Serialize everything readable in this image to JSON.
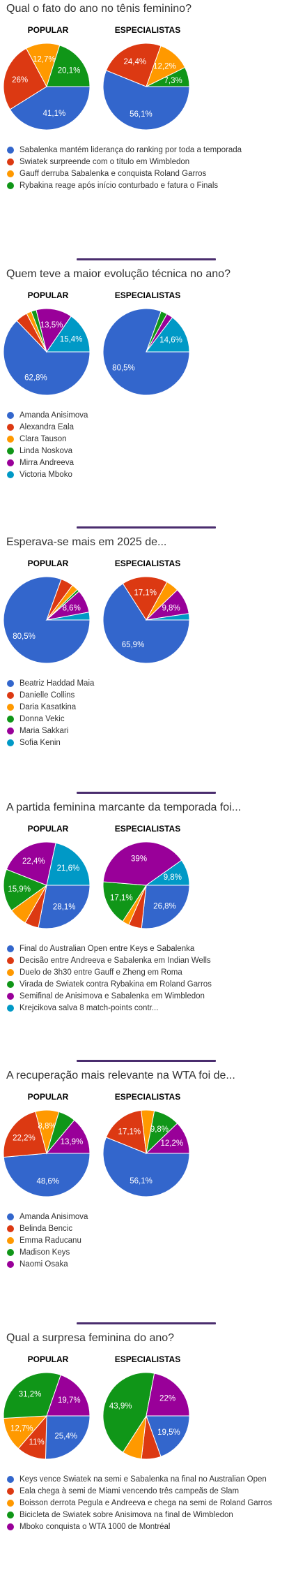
{
  "labels": {
    "popular": "POPULAR",
    "experts": "ESPECIALISTAS"
  },
  "chart_data": [
    {
      "type": "pie",
      "title": "Qual o fato do ano no tênis feminino?",
      "categories": [
        "Sabalenka mantém liderança do ranking por toda a temporada",
        "Swiatek surpreende com o título em Wimbledon",
        "Gauff derruba Sabalenka e conquista Roland Garros",
        "Rybakina reage após início conturbado e fatura o Finals"
      ],
      "colors": [
        "#3366cc",
        "#dc3912",
        "#ff9900",
        "#109618"
      ],
      "series": [
        {
          "name": "POPULAR",
          "values": [
            41.1,
            26,
            12.7,
            20.1
          ],
          "labels": [
            "41,1%",
            "26%",
            "12,7%",
            "20,1%"
          ]
        },
        {
          "name": "ESPECIALISTAS",
          "values": [
            56.1,
            24.4,
            12.2,
            7.3
          ],
          "labels": [
            "56,1%",
            "24,4%",
            "12,2%",
            "7,3%"
          ]
        }
      ]
    },
    {
      "type": "pie",
      "title": "Quem teve a maior evolução técnica no ano?",
      "categories": [
        "Amanda Anisimova",
        "Alexandra Eala",
        "Clara Tauson",
        "Linda Noskova",
        "Mirra Andreeva",
        "Victoria Mboko"
      ],
      "colors": [
        "#3366cc",
        "#dc3912",
        "#ff9900",
        "#109618",
        "#990099",
        "#0099c6"
      ],
      "series": [
        {
          "name": "POPULAR",
          "values": [
            62.8,
            4.5,
            1.9,
            1.9,
            13.5,
            15.4
          ],
          "labels": [
            "62,8%",
            "",
            "",
            "",
            "13,5%",
            "15,4%"
          ]
        },
        {
          "name": "ESPECIALISTAS",
          "values": [
            80.5,
            0,
            0,
            2.4,
            2.4,
            14.6
          ],
          "labels": [
            "80,5%",
            "",
            "",
            "",
            "",
            "14,6%"
          ]
        }
      ]
    },
    {
      "type": "pie",
      "title": "Esperava-se mais em 2025 de...",
      "categories": [
        "Beatriz Haddad Maia",
        "Danielle Collins",
        "Daria Kasatkina",
        "Donna Vekic",
        "Maria Sakkari",
        "Sofia Kenin"
      ],
      "colors": [
        "#3366cc",
        "#dc3912",
        "#ff9900",
        "#109618",
        "#990099",
        "#0099c6"
      ],
      "series": [
        {
          "name": "POPULAR",
          "values": [
            80.5,
            4.7,
            2.4,
            0.9,
            8.6,
            2.9
          ],
          "labels": [
            "80,5%",
            "",
            "",
            "",
            "8,6%",
            ""
          ]
        },
        {
          "name": "ESPECIALISTAS",
          "values": [
            65.9,
            17.1,
            4.8,
            0,
            9.8,
            2.4
          ],
          "labels": [
            "65,9%",
            "17,1%",
            "",
            "",
            "9,8%",
            ""
          ]
        }
      ]
    },
    {
      "type": "pie",
      "title": "A partida feminina marcante da temporada foi...",
      "categories": [
        "Final do Australian Open entre Keys e Sabalenka",
        "Decisão entre Andreeva e Sabalenka em Indian Wells",
        "Duelo de 3h30 entre Gauff e Zheng em Roma",
        "Virada de Swiatek contra Rybakina em Roland Garros",
        "Semifinal de Anisimova e Sabalenka em Wimbledon",
        "Krejcikova salva 8 match-points contr..."
      ],
      "colors": [
        "#3366cc",
        "#dc3912",
        "#ff9900",
        "#109618",
        "#990099",
        "#0099c6"
      ],
      "series": [
        {
          "name": "POPULAR",
          "values": [
            28.1,
            5.2,
            6.8,
            15.9,
            22.4,
            21.6
          ],
          "labels": [
            "28,1%",
            "",
            "",
            "15,9%",
            "22,4%",
            "21,6%"
          ]
        },
        {
          "name": "ESPECIALISTAS",
          "values": [
            26.8,
            4.9,
            2.6,
            17.1,
            39,
            9.8
          ],
          "labels": [
            "26,8%",
            "",
            "",
            "17,1%",
            "39%",
            "9,8%"
          ]
        }
      ]
    },
    {
      "type": "pie",
      "title": "A recuperação mais relevante na WTA foi de...",
      "categories": [
        "Amanda Anisimova",
        "Belinda Bencic",
        "Emma Raducanu",
        "Madison Keys",
        "Naomi Osaka"
      ],
      "colors": [
        "#3366cc",
        "#dc3912",
        "#ff9900",
        "#109618",
        "#990099"
      ],
      "series": [
        {
          "name": "POPULAR",
          "values": [
            48.6,
            22.2,
            8.8,
            6.5,
            13.9
          ],
          "labels": [
            "48,6%",
            "22,2%",
            "8,8%",
            "",
            "13,9%"
          ]
        },
        {
          "name": "ESPECIALISTAS",
          "values": [
            56.1,
            17.1,
            4.9,
            9.8,
            12.2
          ],
          "labels": [
            "56,1%",
            "17,1%",
            "",
            "9,8%",
            "12,2%"
          ]
        }
      ]
    },
    {
      "type": "pie",
      "title": "Qual a surpresa feminina do ano?",
      "categories": [
        "Keys vence Swiatek na semi e Sabalenka na final no Australian Open",
        "Eala chega à semi de Miami vencendo três campeãs de Slam",
        "Boisson derrota Pegula e Andreeva e chega na semi de Roland Garros",
        "Bicicleta de Swiatek sobre Anisimova na final de Wimbledon",
        "Mboko conquista o WTA 1000 de Montréal"
      ],
      "colors": [
        "#3366cc",
        "#dc3912",
        "#ff9900",
        "#109618",
        "#990099"
      ],
      "series": [
        {
          "name": "POPULAR",
          "values": [
            25.4,
            11,
            12.7,
            31.2,
            19.7
          ],
          "labels": [
            "25,4%",
            "11%",
            "12,7%",
            "31,2%",
            "19,7%"
          ]
        },
        {
          "name": "ESPECIALISTAS",
          "values": [
            19.5,
            7.3,
            7.3,
            43.9,
            22
          ],
          "labels": [
            "19,5%",
            "",
            "",
            "43,9%",
            "22%"
          ]
        }
      ]
    }
  ]
}
